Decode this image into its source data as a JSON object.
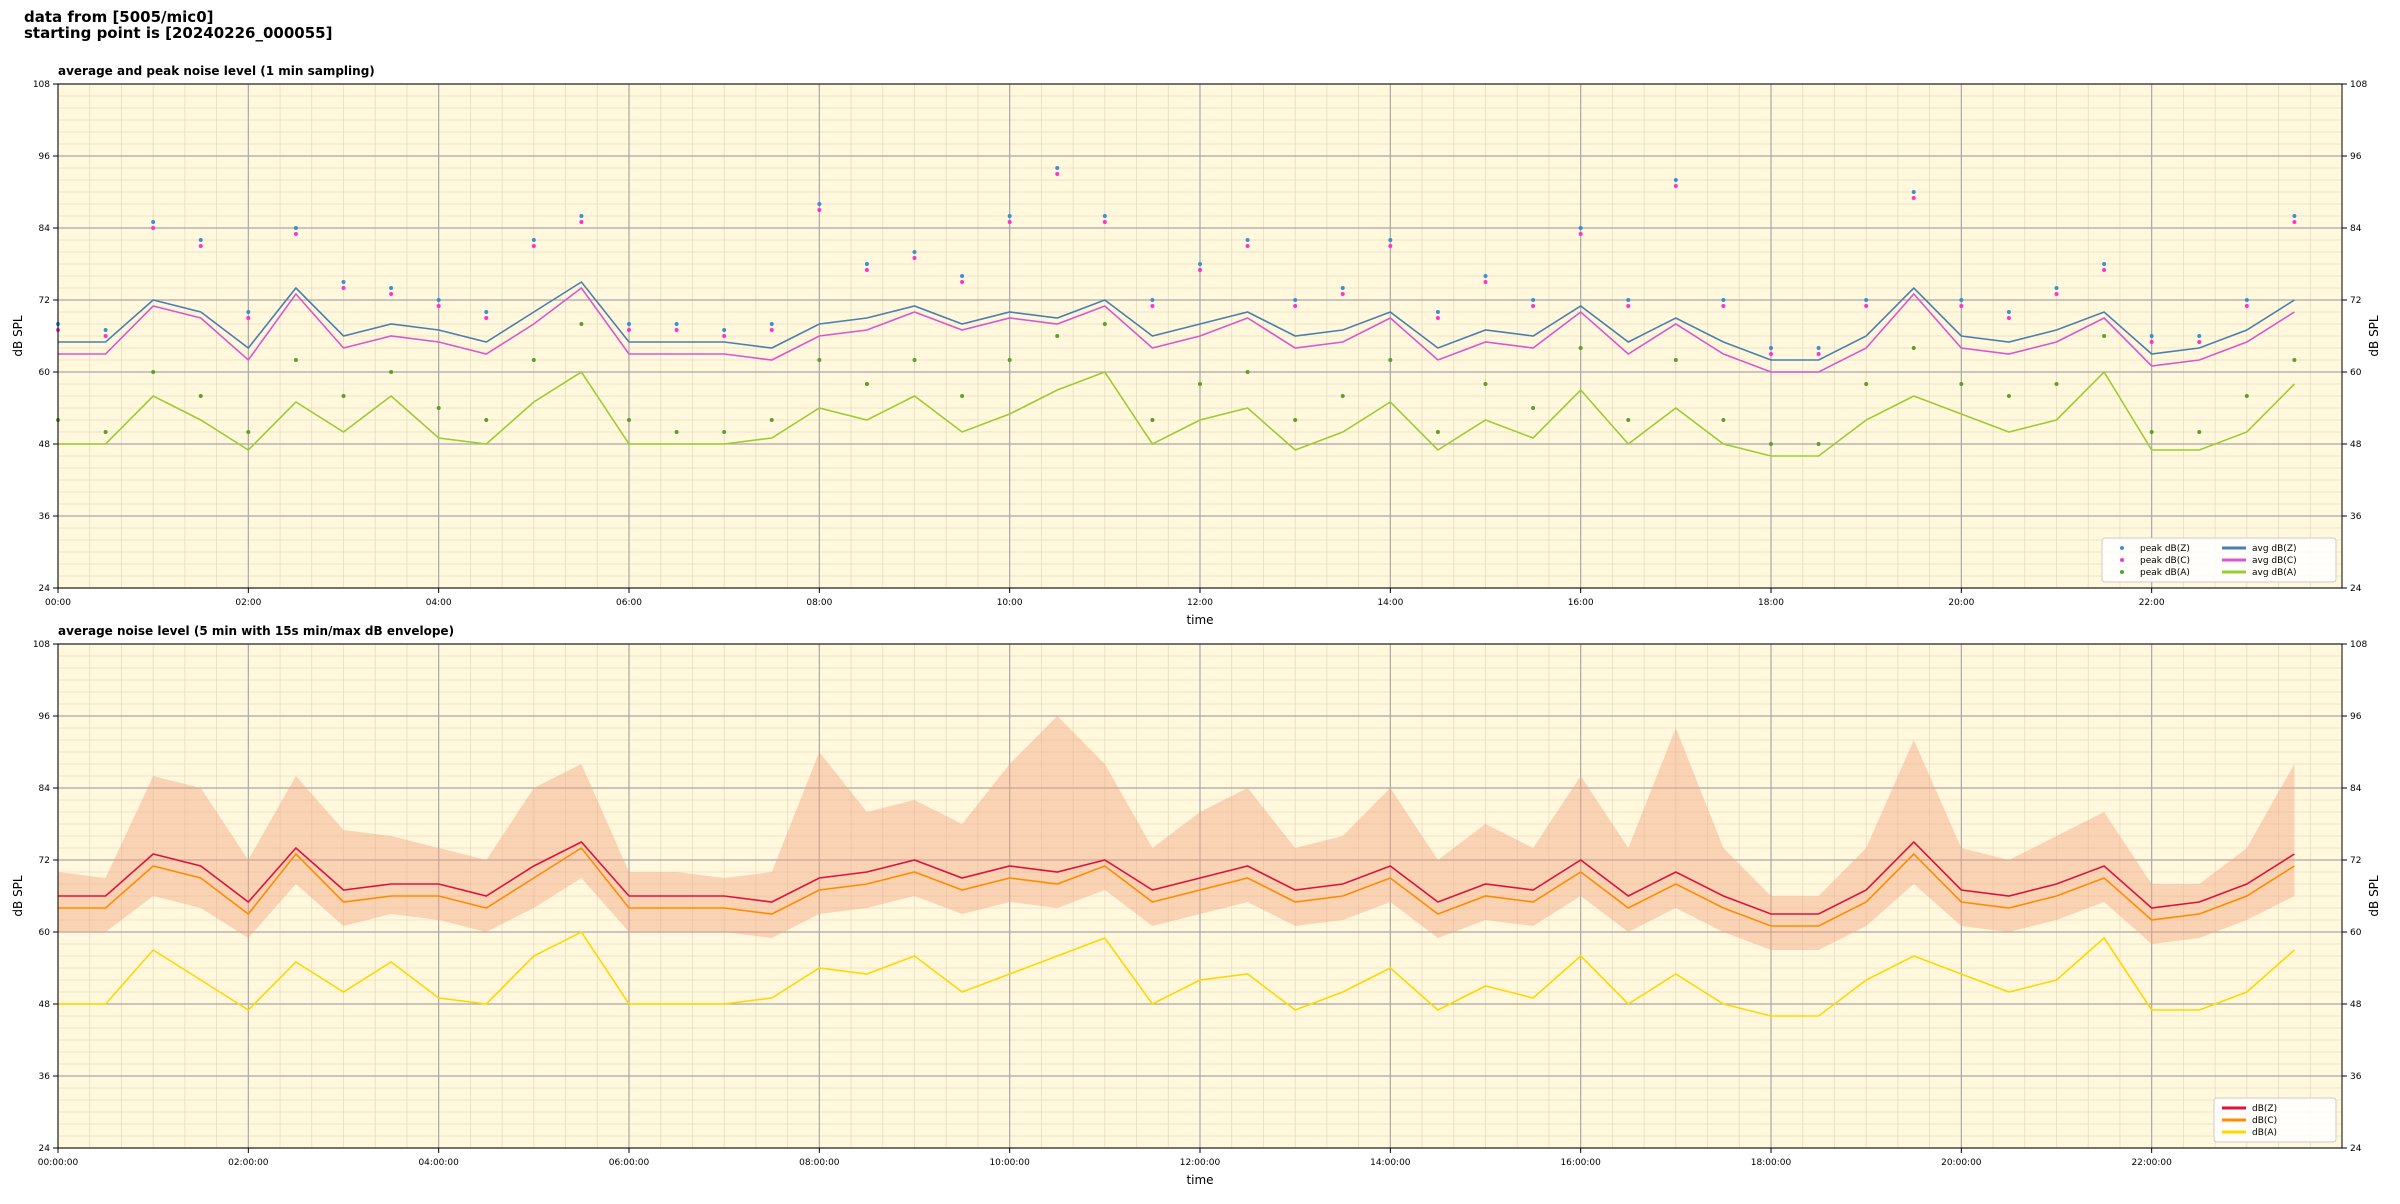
{
  "header": {
    "lines": [
      "data from [5005/mic0]",
      "starting point is [20240226_000055]"
    ]
  },
  "chart_data": [
    {
      "type": "line",
      "title": "average and peak noise level (1 min sampling)",
      "xlabel": "time",
      "ylabel": "dB SPL",
      "x": [
        0,
        0.5,
        1,
        1.5,
        2,
        2.5,
        3,
        3.5,
        4,
        4.5,
        5,
        5.5,
        6,
        6.5,
        7,
        7.5,
        8,
        8.5,
        9,
        9.5,
        10,
        10.5,
        11,
        11.5,
        12,
        12.5,
        13,
        13.5,
        14,
        14.5,
        15,
        15.5,
        16,
        16.5,
        17,
        17.5,
        18,
        18.5,
        19,
        19.5,
        20,
        20.5,
        21,
        21.5,
        22,
        22.5,
        23,
        23.5
      ],
      "xlim": [
        0,
        24
      ],
      "xticks": [
        {
          "value": 0,
          "label": "00:00"
        },
        {
          "value": 2,
          "label": "02:00"
        },
        {
          "value": 4,
          "label": "04:00"
        },
        {
          "value": 6,
          "label": "06:00"
        },
        {
          "value": 8,
          "label": "08:00"
        },
        {
          "value": 10,
          "label": "10:00"
        },
        {
          "value": 12,
          "label": "12:00"
        },
        {
          "value": 14,
          "label": "14:00"
        },
        {
          "value": 16,
          "label": "16:00"
        },
        {
          "value": 18,
          "label": "18:00"
        },
        {
          "value": 20,
          "label": "20:00"
        },
        {
          "value": 22,
          "label": "22:00"
        }
      ],
      "ylim": [
        24,
        108
      ],
      "yticks": [
        24,
        36,
        48,
        60,
        72,
        84,
        96,
        108
      ],
      "grid": true,
      "legend": "lower right",
      "legend_ncol": 2,
      "series": [
        {
          "name": "peak dB(Z)",
          "type": "scatter",
          "color": "#3a8fd6",
          "values": [
            68,
            67,
            85,
            82,
            70,
            84,
            75,
            74,
            72,
            70,
            82,
            86,
            68,
            68,
            67,
            68,
            88,
            78,
            80,
            76,
            86,
            94,
            86,
            72,
            78,
            82,
            72,
            74,
            82,
            70,
            76,
            72,
            84,
            72,
            92,
            72,
            64,
            64,
            72,
            90,
            72,
            70,
            74,
            78,
            66,
            66,
            72,
            86
          ]
        },
        {
          "name": "peak dB(C)",
          "type": "scatter",
          "color": "#ff33cc",
          "values": [
            67,
            66,
            84,
            81,
            69,
            83,
            74,
            73,
            71,
            69,
            81,
            85,
            67,
            67,
            66,
            67,
            87,
            77,
            79,
            75,
            85,
            93,
            85,
            71,
            77,
            81,
            71,
            73,
            81,
            69,
            75,
            71,
            83,
            71,
            91,
            71,
            63,
            63,
            71,
            89,
            71,
            69,
            73,
            77,
            65,
            65,
            71,
            85
          ]
        },
        {
          "name": "peak dB(A)",
          "type": "scatter",
          "color": "#5aa02c",
          "values": [
            52,
            50,
            60,
            56,
            50,
            62,
            56,
            60,
            54,
            52,
            62,
            68,
            52,
            50,
            50,
            52,
            62,
            58,
            62,
            56,
            62,
            66,
            68,
            52,
            58,
            60,
            52,
            56,
            62,
            50,
            58,
            54,
            64,
            52,
            62,
            52,
            48,
            48,
            58,
            64,
            58,
            56,
            58,
            66,
            50,
            50,
            56,
            62
          ]
        },
        {
          "name": "avg dB(Z)",
          "type": "line",
          "color": "#4a7fb0",
          "values": [
            65,
            65,
            72,
            70,
            64,
            74,
            66,
            68,
            67,
            65,
            70,
            75,
            65,
            65,
            65,
            64,
            68,
            69,
            71,
            68,
            70,
            69,
            72,
            66,
            68,
            70,
            66,
            67,
            70,
            64,
            67,
            66,
            71,
            65,
            69,
            65,
            62,
            62,
            66,
            74,
            66,
            65,
            67,
            70,
            63,
            64,
            67,
            72
          ]
        },
        {
          "name": "avg dB(C)",
          "type": "line",
          "color": "#d957d0",
          "values": [
            63,
            63,
            71,
            69,
            62,
            73,
            64,
            66,
            65,
            63,
            68,
            74,
            63,
            63,
            63,
            62,
            66,
            67,
            70,
            67,
            69,
            68,
            71,
            64,
            66,
            69,
            64,
            65,
            69,
            62,
            65,
            64,
            70,
            63,
            68,
            63,
            60,
            60,
            64,
            73,
            64,
            63,
            65,
            69,
            61,
            62,
            65,
            70
          ]
        },
        {
          "name": "avg dB(A)",
          "type": "line",
          "color": "#9acd32",
          "values": [
            48,
            48,
            56,
            52,
            47,
            55,
            50,
            56,
            49,
            48,
            55,
            60,
            48,
            48,
            48,
            49,
            54,
            52,
            56,
            50,
            53,
            57,
            60,
            48,
            52,
            54,
            47,
            50,
            55,
            47,
            52,
            49,
            57,
            48,
            54,
            48,
            46,
            46,
            52,
            56,
            53,
            50,
            52,
            60,
            47,
            47,
            50,
            58
          ]
        }
      ]
    },
    {
      "type": "line",
      "title": "average noise level (5 min with 15s min/max dB envelope)",
      "xlabel": "time",
      "ylabel": "dB SPL",
      "x": [
        0,
        0.5,
        1,
        1.5,
        2,
        2.5,
        3,
        3.5,
        4,
        4.5,
        5,
        5.5,
        6,
        6.5,
        7,
        7.5,
        8,
        8.5,
        9,
        9.5,
        10,
        10.5,
        11,
        11.5,
        12,
        12.5,
        13,
        13.5,
        14,
        14.5,
        15,
        15.5,
        16,
        16.5,
        17,
        17.5,
        18,
        18.5,
        19,
        19.5,
        20,
        20.5,
        21,
        21.5,
        22,
        22.5,
        23,
        23.5
      ],
      "xlim": [
        0,
        24
      ],
      "xticks": [
        {
          "value": 0,
          "label": "00:00:00"
        },
        {
          "value": 2,
          "label": "02:00:00"
        },
        {
          "value": 4,
          "label": "04:00:00"
        },
        {
          "value": 6,
          "label": "06:00:00"
        },
        {
          "value": 8,
          "label": "08:00:00"
        },
        {
          "value": 10,
          "label": "10:00:00"
        },
        {
          "value": 12,
          "label": "12:00:00"
        },
        {
          "value": 14,
          "label": "14:00:00"
        },
        {
          "value": 16,
          "label": "16:00:00"
        },
        {
          "value": 18,
          "label": "18:00:00"
        },
        {
          "value": 20,
          "label": "20:00:00"
        },
        {
          "value": 22,
          "label": "22:00:00"
        }
      ],
      "ylim": [
        24,
        108
      ],
      "yticks": [
        24,
        36,
        48,
        60,
        72,
        84,
        96,
        108
      ],
      "grid": true,
      "legend": "lower right",
      "legend_ncol": 1,
      "envelope": {
        "color": "#f4a582",
        "lower": [
          60,
          60,
          66,
          64,
          59,
          68,
          61,
          63,
          62,
          60,
          64,
          69,
          60,
          60,
          60,
          59,
          63,
          64,
          66,
          63,
          65,
          64,
          67,
          61,
          63,
          65,
          61,
          62,
          65,
          59,
          62,
          61,
          66,
          60,
          64,
          60,
          57,
          57,
          61,
          68,
          61,
          60,
          62,
          65,
          58,
          59,
          62,
          66
        ],
        "upper": [
          70,
          69,
          86,
          84,
          72,
          86,
          77,
          76,
          74,
          72,
          84,
          88,
          70,
          70,
          69,
          70,
          90,
          80,
          82,
          78,
          88,
          96,
          88,
          74,
          80,
          84,
          74,
          76,
          84,
          72,
          78,
          74,
          86,
          74,
          94,
          74,
          66,
          66,
          74,
          92,
          74,
          72,
          76,
          80,
          68,
          68,
          74,
          88
        ]
      },
      "series": [
        {
          "name": "dB(Z)",
          "type": "line",
          "color": "#dc143c",
          "values": [
            66,
            66,
            73,
            71,
            65,
            74,
            67,
            68,
            68,
            66,
            71,
            75,
            66,
            66,
            66,
            65,
            69,
            70,
            72,
            69,
            71,
            70,
            72,
            67,
            69,
            71,
            67,
            68,
            71,
            65,
            68,
            67,
            72,
            66,
            70,
            66,
            63,
            63,
            67,
            75,
            67,
            66,
            68,
            71,
            64,
            65,
            68,
            73
          ]
        },
        {
          "name": "dB(C)",
          "type": "line",
          "color": "#ff8c00",
          "values": [
            64,
            64,
            71,
            69,
            63,
            73,
            65,
            66,
            66,
            64,
            69,
            74,
            64,
            64,
            64,
            63,
            67,
            68,
            70,
            67,
            69,
            68,
            71,
            65,
            67,
            69,
            65,
            66,
            69,
            63,
            66,
            65,
            70,
            64,
            68,
            64,
            61,
            61,
            65,
            73,
            65,
            64,
            66,
            69,
            62,
            63,
            66,
            71
          ]
        },
        {
          "name": "dB(A)",
          "type": "line",
          "color": "#ffd700",
          "values": [
            48,
            48,
            57,
            52,
            47,
            55,
            50,
            55,
            49,
            48,
            56,
            60,
            48,
            48,
            48,
            49,
            54,
            53,
            56,
            50,
            53,
            56,
            59,
            48,
            52,
            53,
            47,
            50,
            54,
            47,
            51,
            49,
            56,
            48,
            53,
            48,
            46,
            46,
            52,
            56,
            53,
            50,
            52,
            59,
            47,
            47,
            50,
            57
          ]
        }
      ]
    }
  ]
}
